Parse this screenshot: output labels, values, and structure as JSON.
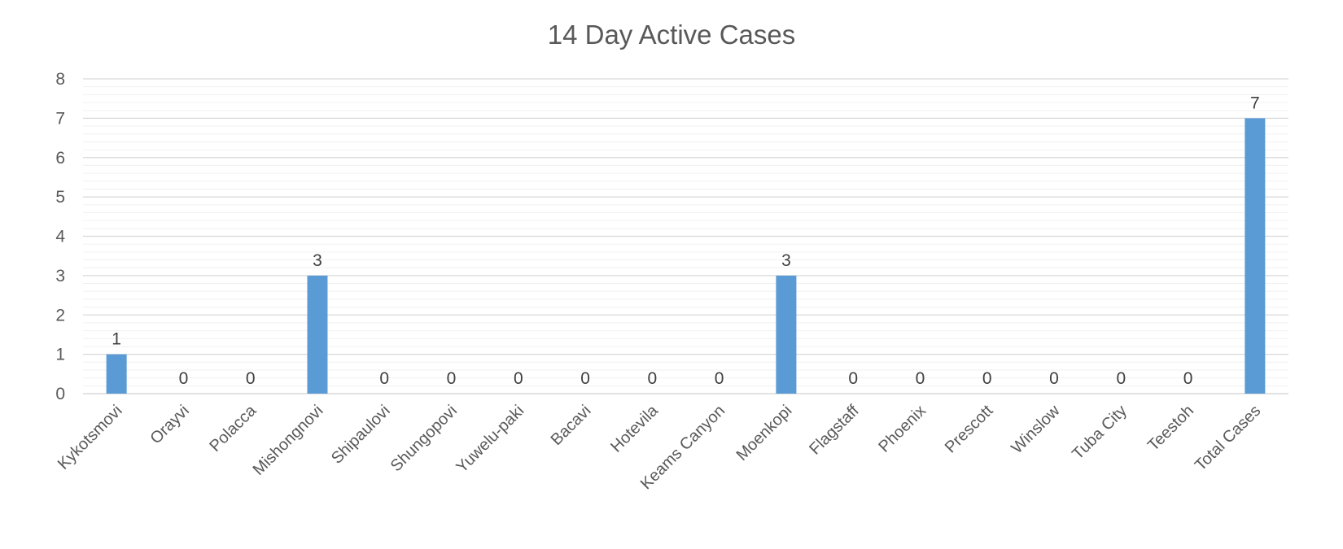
{
  "chart_data": {
    "type": "bar",
    "title": "14 Day Active Cases",
    "xlabel": "",
    "ylabel": "",
    "ylim": [
      0,
      8
    ],
    "yticks": [
      "0",
      "1",
      "2",
      "3",
      "4",
      "5",
      "6",
      "7",
      "8"
    ],
    "grid": true,
    "legend": "none",
    "bar_color": "#5B9BD5",
    "categories": [
      "Kykotsmovi",
      "Orayvi",
      "Polacca",
      "Mishongnovi",
      "Shipaulovi",
      "Shungopovi",
      "Yuwelu-paki",
      "Bacavi",
      "Hotevila",
      "Keams Canyon",
      "Moenkopi",
      "Flagstaff",
      "Phoenix",
      "Prescott",
      "Winslow",
      "Tuba City",
      "Teestoh",
      "Total Cases"
    ],
    "values": [
      1,
      0,
      0,
      3,
      0,
      0,
      0,
      0,
      0,
      0,
      3,
      0,
      0,
      0,
      0,
      0,
      0,
      7
    ],
    "data_labels": [
      "1",
      "0",
      "0",
      "3",
      "0",
      "0",
      "0",
      "0",
      "0",
      "0",
      "3",
      "0",
      "0",
      "0",
      "0",
      "0",
      "0",
      "7"
    ]
  }
}
